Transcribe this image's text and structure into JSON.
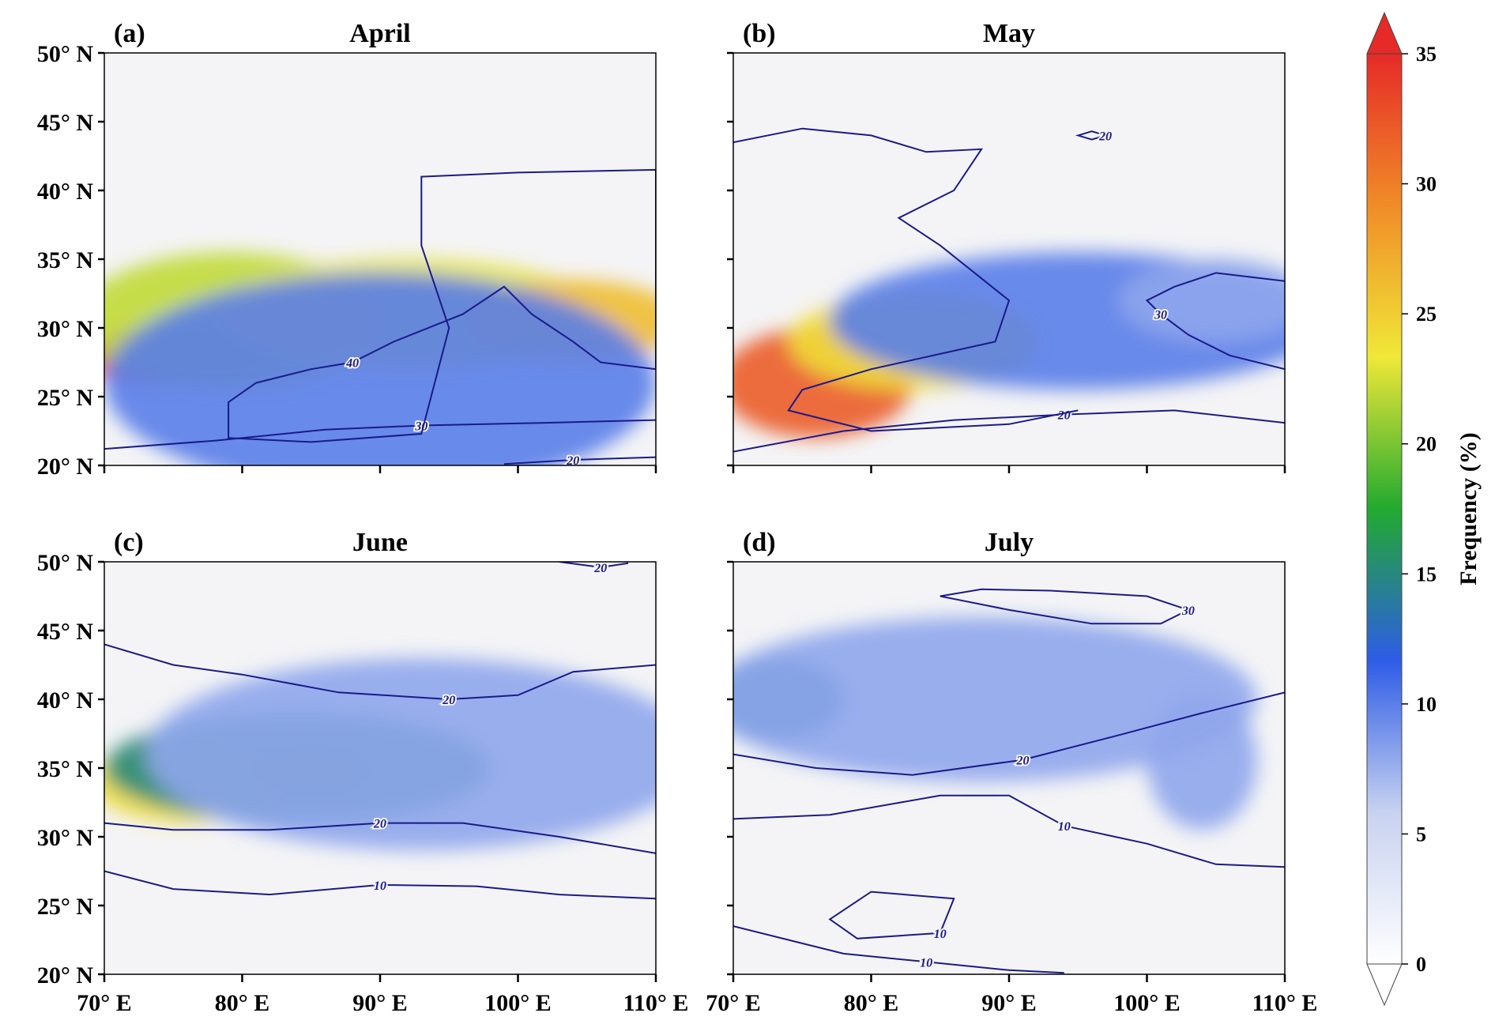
{
  "figure": {
    "panels": [
      {
        "letter": "(a)",
        "title": "April",
        "contours": [
          {
            "label": "30",
            "pts": [
              [
                70,
                21.2
              ],
              [
                78,
                21.8
              ],
              [
                86,
                22.6
              ],
              [
                93,
                22.9
              ],
              [
                102,
                23.1
              ],
              [
                110,
                23.3
              ]
            ]
          },
          {
            "label": "20",
            "pts": [
              [
                99,
                20.1
              ],
              [
                104,
                20.4
              ],
              [
                110,
                20.6
              ]
            ]
          },
          {
            "label": "40",
            "pts": [
              [
                93,
                41
              ],
              [
                100,
                41.3
              ],
              [
                110,
                41.5
              ],
              [
                110,
                27
              ],
              [
                106,
                27.5
              ],
              [
                104,
                29
              ],
              [
                101,
                31
              ],
              [
                99,
                33
              ],
              [
                96,
                31
              ],
              [
                91,
                29
              ],
              [
                88,
                27.5
              ],
              [
                85,
                27
              ],
              [
                81,
                26
              ],
              [
                79,
                24.6
              ],
              [
                79,
                22
              ],
              [
                85,
                21.7
              ],
              [
                93,
                22.3
              ],
              [
                95,
                30
              ],
              [
                93,
                36
              ],
              [
                93,
                41
              ]
            ],
            "closed": true
          }
        ],
        "blobs": [
          {
            "cx": 75,
            "cy": 28,
            "rx": 7,
            "ry": 2.2,
            "v": 35
          },
          {
            "cx": 79,
            "cy": 30.5,
            "rx": 11,
            "ry": 5,
            "v": 22
          },
          {
            "cx": 92,
            "cy": 31,
            "rx": 14,
            "ry": 4,
            "v": 23
          },
          {
            "cx": 104,
            "cy": 30.5,
            "rx": 8,
            "ry": 3,
            "v": 26
          },
          {
            "cx": 90,
            "cy": 26,
            "rx": 20,
            "ry": 8,
            "v": 10
          }
        ]
      },
      {
        "letter": "(b)",
        "title": "May",
        "contours": [
          {
            "label": "20",
            "pts": [
              [
                70,
                21
              ],
              [
                78,
                22.5
              ],
              [
                86,
                23.3
              ],
              [
                94,
                23.7
              ],
              [
                102,
                24
              ],
              [
                110,
                23.1
              ]
            ]
          },
          {
            "label": "30",
            "pts": [
              [
                110,
                33.4
              ],
              [
                105,
                34
              ],
              [
                102,
                33
              ],
              [
                100,
                32
              ],
              [
                101,
                31
              ],
              [
                103,
                29.5
              ],
              [
                106,
                28
              ],
              [
                110,
                27
              ]
            ]
          },
          {
            "label": "20",
            "pts": [
              [
                95,
                44
              ],
              [
                96,
                44.3
              ],
              [
                97,
                44
              ],
              [
                96,
                43.7
              ],
              [
                95,
                44
              ]
            ],
            "closed": true
          },
          {
            "label": "",
            "pts": [
              [
                70,
                43.5
              ],
              [
                75,
                44.5
              ],
              [
                80,
                44
              ],
              [
                84,
                42.8
              ],
              [
                88,
                43
              ],
              [
                86,
                40
              ],
              [
                82,
                38
              ],
              [
                85,
                36
              ],
              [
                90,
                32
              ],
              [
                89,
                29
              ],
              [
                80,
                27
              ],
              [
                75,
                25.5
              ],
              [
                74,
                24
              ],
              [
                80,
                22.5
              ],
              [
                90,
                23
              ],
              [
                95,
                24
              ]
            ]
          }
        ],
        "blobs": [
          {
            "cx": 76,
            "cy": 26,
            "rx": 7,
            "ry": 4,
            "v": 32
          },
          {
            "cx": 83,
            "cy": 29,
            "rx": 9,
            "ry": 3.5,
            "v": 24
          },
          {
            "cx": 95,
            "cy": 30.5,
            "rx": 18,
            "ry": 5,
            "v": 10
          },
          {
            "cx": 105,
            "cy": 32,
            "rx": 7,
            "ry": 3,
            "v": 8
          }
        ]
      },
      {
        "letter": "(c)",
        "title": "June",
        "contours": [
          {
            "label": "20",
            "pts": [
              [
                70,
                44
              ],
              [
                75,
                42.5
              ],
              [
                80,
                41.8
              ],
              [
                87,
                40.5
              ],
              [
                95,
                40
              ],
              [
                100,
                40.3
              ],
              [
                104,
                42
              ],
              [
                110,
                42.5
              ]
            ]
          },
          {
            "label": "20",
            "pts": [
              [
                70,
                31
              ],
              [
                75,
                30.5
              ],
              [
                82,
                30.5
              ],
              [
                90,
                31
              ],
              [
                96,
                31
              ],
              [
                103,
                30
              ],
              [
                110,
                28.8
              ]
            ]
          },
          {
            "label": "10",
            "pts": [
              [
                70,
                27.5
              ],
              [
                75,
                26.2
              ],
              [
                82,
                25.8
              ],
              [
                90,
                26.5
              ],
              [
                97,
                26.4
              ],
              [
                103,
                25.8
              ],
              [
                110,
                25.5
              ]
            ]
          },
          {
            "label": "20",
            "pts": [
              [
                103,
                50
              ],
              [
                106,
                49.6
              ],
              [
                108,
                49.9
              ]
            ]
          }
        ],
        "blobs": [
          {
            "cx": 76,
            "cy": 34,
            "rx": 7,
            "ry": 3,
            "v": 24
          },
          {
            "cx": 85,
            "cy": 34.8,
            "rx": 4,
            "ry": 1.5,
            "v": 30
          },
          {
            "cx": 84,
            "cy": 35,
            "rx": 14,
            "ry": 4,
            "v": 15
          },
          {
            "cx": 93,
            "cy": 36,
            "rx": 20,
            "ry": 7,
            "v": 8
          }
        ]
      },
      {
        "letter": "(d)",
        "title": "July",
        "contours": [
          {
            "label": "30",
            "pts": [
              [
                85,
                47.5
              ],
              [
                90,
                46.5
              ],
              [
                96,
                45.5
              ],
              [
                101,
                45.5
              ],
              [
                103,
                46.5
              ],
              [
                100,
                47.5
              ],
              [
                93,
                47.9
              ],
              [
                88,
                48
              ],
              [
                85,
                47.5
              ]
            ],
            "closed": true
          },
          {
            "label": "20",
            "pts": [
              [
                70,
                36
              ],
              [
                76,
                35
              ],
              [
                83,
                34.5
              ],
              [
                91,
                35.6
              ],
              [
                98,
                37.4
              ],
              [
                104,
                39
              ],
              [
                110,
                40.5
              ]
            ]
          },
          {
            "label": "10",
            "pts": [
              [
                70,
                31.3
              ],
              [
                77,
                31.6
              ],
              [
                85,
                33
              ],
              [
                90,
                33
              ],
              [
                94,
                30.8
              ],
              [
                100,
                29.5
              ],
              [
                105,
                28
              ],
              [
                110,
                27.8
              ]
            ]
          },
          {
            "label": "10",
            "pts": [
              [
                77,
                24
              ],
              [
                80,
                26
              ],
              [
                86,
                25.5
              ],
              [
                85,
                23
              ],
              [
                79,
                22.6
              ],
              [
                77,
                24
              ]
            ],
            "closed": true
          },
          {
            "label": "10",
            "pts": [
              [
                70,
                23.5
              ],
              [
                74,
                22.5
              ],
              [
                78,
                21.5
              ],
              [
                84,
                20.9
              ],
              [
                90,
                20.3
              ],
              [
                94,
                20.1
              ]
            ]
          }
        ],
        "blobs": [
          {
            "cx": 73,
            "cy": 40,
            "rx": 5,
            "ry": 3,
            "v": 14
          },
          {
            "cx": 88,
            "cy": 40,
            "rx": 20,
            "ry": 6,
            "v": 8
          },
          {
            "cx": 104,
            "cy": 35.5,
            "rx": 4,
            "ry": 5,
            "v": 8
          }
        ]
      }
    ],
    "lat_ticks": [
      "20° N",
      "25° N",
      "30° N",
      "35° N",
      "40° N",
      "45° N",
      "50° N"
    ],
    "lon_ticks": [
      "70° E",
      "80° E",
      "90° E",
      "100° E",
      "110° E"
    ],
    "lat_range": [
      20,
      50
    ],
    "lon_range": [
      70,
      110
    ],
    "colorbar": {
      "label": "Frequency (%)",
      "ticks": [
        "0",
        "5",
        "10",
        "15",
        "20",
        "25",
        "30",
        "35"
      ],
      "range": [
        0,
        35
      ],
      "extend": "both",
      "stops": [
        "#ffffff",
        "#c8d2f0",
        "#2e5ce6",
        "#22aa2f",
        "#f0e838",
        "#f08c28",
        "#e62a28"
      ]
    },
    "contour_color": "#1a1a8c",
    "background_color": "#f4f4f6"
  }
}
